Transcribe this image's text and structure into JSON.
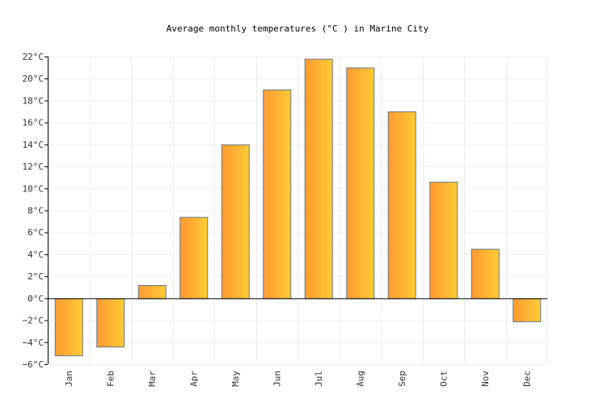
{
  "chart_data": {
    "type": "bar",
    "title": "Average monthly temperatures (°C ) in Marine City",
    "xlabel": "",
    "ylabel": "",
    "categories": [
      "Jan",
      "Feb",
      "Mar",
      "Apr",
      "May",
      "Jun",
      "Jul",
      "Aug",
      "Sep",
      "Oct",
      "Nov",
      "Dec"
    ],
    "values": [
      -5.2,
      -4.4,
      1.2,
      7.4,
      14.0,
      19.0,
      21.8,
      21.0,
      17.0,
      10.6,
      4.5,
      -2.1
    ],
    "ylim": [
      -6,
      22
    ],
    "yticks": [
      -6,
      -4,
      -2,
      0,
      2,
      4,
      6,
      8,
      10,
      12,
      14,
      16,
      18,
      20,
      22
    ],
    "ytick_unit": "°C",
    "grid": true,
    "legend": "none",
    "colors": {
      "bar_start": "#ff9933",
      "bar_end": "#ffcc33",
      "bar_border": "#667788",
      "grid": "#eeeeee"
    }
  }
}
